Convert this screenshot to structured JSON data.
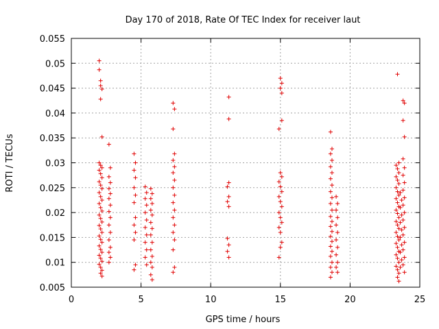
{
  "chart_data": {
    "type": "scatter",
    "title": "Day 170 of 2018, Rate Of TEC Index for receiver laut",
    "xlabel": "GPS time / hours",
    "ylabel": "ROTI / TECUs",
    "xlim": [
      0,
      25
    ],
    "ylim": [
      0.005,
      0.055
    ],
    "xticks": [
      "0",
      "5",
      "10",
      "15",
      "20",
      "25"
    ],
    "yticks": [
      "0.005",
      "0.01",
      "0.015",
      "0.02",
      "0.025",
      "0.03",
      "0.035",
      "0.04",
      "0.045",
      "0.05",
      "0.055"
    ],
    "grid": true,
    "marker": "+",
    "color": "#e00000",
    "series": [
      {
        "points": [
          [
            2.0,
            0.0505
          ],
          [
            2.0,
            0.0487
          ],
          [
            2.1,
            0.0465
          ],
          [
            2.1,
            0.0455
          ],
          [
            2.2,
            0.0448
          ],
          [
            2.1,
            0.0428
          ],
          [
            2.2,
            0.0352
          ],
          [
            2.0,
            0.03
          ],
          [
            2.1,
            0.0295
          ],
          [
            2.2,
            0.029
          ],
          [
            2.0,
            0.0285
          ],
          [
            2.1,
            0.0278
          ],
          [
            2.2,
            0.027
          ],
          [
            2.0,
            0.0262
          ],
          [
            2.1,
            0.0255
          ],
          [
            2.2,
            0.0248
          ],
          [
            2.0,
            0.024
          ],
          [
            2.1,
            0.0232
          ],
          [
            2.2,
            0.0225
          ],
          [
            2.0,
            0.0218
          ],
          [
            2.1,
            0.021
          ],
          [
            2.2,
            0.0203
          ],
          [
            2.0,
            0.0195
          ],
          [
            2.1,
            0.0188
          ],
          [
            2.2,
            0.0181
          ],
          [
            2.0,
            0.0174
          ],
          [
            2.1,
            0.0167
          ],
          [
            2.2,
            0.016
          ],
          [
            2.0,
            0.0153
          ],
          [
            2.1,
            0.0146
          ],
          [
            2.2,
            0.014
          ],
          [
            2.0,
            0.0133
          ],
          [
            2.1,
            0.0126
          ],
          [
            2.2,
            0.012
          ],
          [
            2.0,
            0.0114
          ],
          [
            2.1,
            0.0108
          ],
          [
            2.2,
            0.0102
          ],
          [
            2.0,
            0.0096
          ],
          [
            2.1,
            0.009
          ],
          [
            2.2,
            0.0084
          ],
          [
            2.1,
            0.0078
          ],
          [
            2.2,
            0.0072
          ],
          [
            2.7,
            0.0337
          ],
          [
            2.8,
            0.029
          ],
          [
            2.7,
            0.0272
          ],
          [
            2.8,
            0.026
          ],
          [
            2.7,
            0.0248
          ],
          [
            2.8,
            0.0238
          ],
          [
            2.7,
            0.0228
          ],
          [
            2.8,
            0.0215
          ],
          [
            2.7,
            0.0202
          ],
          [
            2.8,
            0.019
          ],
          [
            2.7,
            0.0175
          ],
          [
            2.8,
            0.016
          ],
          [
            2.7,
            0.0145
          ],
          [
            2.8,
            0.013
          ],
          [
            2.7,
            0.012
          ],
          [
            2.8,
            0.011
          ],
          [
            2.7,
            0.01
          ],
          [
            4.5,
            0.0318
          ],
          [
            4.6,
            0.03
          ],
          [
            4.5,
            0.0285
          ],
          [
            4.6,
            0.027
          ],
          [
            4.5,
            0.025
          ],
          [
            4.6,
            0.0235
          ],
          [
            4.5,
            0.022
          ],
          [
            4.6,
            0.019
          ],
          [
            4.5,
            0.0175
          ],
          [
            4.6,
            0.016
          ],
          [
            4.5,
            0.0145
          ],
          [
            4.6,
            0.0095
          ],
          [
            4.5,
            0.0085
          ],
          [
            5.3,
            0.0252
          ],
          [
            5.4,
            0.024
          ],
          [
            5.3,
            0.0228
          ],
          [
            5.4,
            0.0215
          ],
          [
            5.3,
            0.02
          ],
          [
            5.4,
            0.0185
          ],
          [
            5.3,
            0.017
          ],
          [
            5.4,
            0.0155
          ],
          [
            5.3,
            0.014
          ],
          [
            5.4,
            0.0125
          ],
          [
            5.3,
            0.011
          ],
          [
            5.4,
            0.0095
          ],
          [
            5.7,
            0.0248
          ],
          [
            5.8,
            0.0238
          ],
          [
            5.7,
            0.0228
          ],
          [
            5.8,
            0.0218
          ],
          [
            5.7,
            0.0205
          ],
          [
            5.8,
            0.0195
          ],
          [
            5.7,
            0.018
          ],
          [
            5.8,
            0.0168
          ],
          [
            5.7,
            0.0155
          ],
          [
            5.8,
            0.014
          ],
          [
            5.7,
            0.0125
          ],
          [
            5.8,
            0.0112
          ],
          [
            5.7,
            0.01
          ],
          [
            5.8,
            0.009
          ],
          [
            5.7,
            0.0075
          ],
          [
            5.8,
            0.0065
          ],
          [
            7.3,
            0.042
          ],
          [
            7.4,
            0.0408
          ],
          [
            7.3,
            0.0368
          ],
          [
            7.4,
            0.0318
          ],
          [
            7.3,
            0.0305
          ],
          [
            7.4,
            0.0292
          ],
          [
            7.3,
            0.028
          ],
          [
            7.4,
            0.0265
          ],
          [
            7.3,
            0.025
          ],
          [
            7.4,
            0.0235
          ],
          [
            7.3,
            0.022
          ],
          [
            7.4,
            0.0205
          ],
          [
            7.3,
            0.019
          ],
          [
            7.4,
            0.0175
          ],
          [
            7.3,
            0.016
          ],
          [
            7.4,
            0.0145
          ],
          [
            7.3,
            0.0125
          ],
          [
            7.4,
            0.009
          ],
          [
            7.3,
            0.008
          ],
          [
            11.3,
            0.0432
          ],
          [
            11.3,
            0.0388
          ],
          [
            11.3,
            0.026
          ],
          [
            11.2,
            0.0252
          ],
          [
            11.3,
            0.0232
          ],
          [
            11.2,
            0.0222
          ],
          [
            11.3,
            0.0212
          ],
          [
            11.2,
            0.0148
          ],
          [
            11.3,
            0.0135
          ],
          [
            11.2,
            0.0122
          ],
          [
            11.3,
            0.011
          ],
          [
            15.0,
            0.047
          ],
          [
            15.1,
            0.046
          ],
          [
            15.0,
            0.045
          ],
          [
            15.1,
            0.044
          ],
          [
            15.1,
            0.0385
          ],
          [
            14.9,
            0.0368
          ],
          [
            15.0,
            0.028
          ],
          [
            15.1,
            0.0272
          ],
          [
            14.9,
            0.0262
          ],
          [
            15.0,
            0.0252
          ],
          [
            15.1,
            0.0242
          ],
          [
            14.9,
            0.0232
          ],
          [
            15.0,
            0.0222
          ],
          [
            15.1,
            0.0212
          ],
          [
            14.9,
            0.02
          ],
          [
            15.0,
            0.019
          ],
          [
            15.1,
            0.018
          ],
          [
            14.9,
            0.017
          ],
          [
            15.0,
            0.016
          ],
          [
            15.1,
            0.014
          ],
          [
            15.0,
            0.013
          ],
          [
            14.9,
            0.011
          ],
          [
            18.6,
            0.0362
          ],
          [
            18.7,
            0.0328
          ],
          [
            18.6,
            0.0318
          ],
          [
            18.7,
            0.0305
          ],
          [
            18.6,
            0.0292
          ],
          [
            18.7,
            0.028
          ],
          [
            18.6,
            0.0268
          ],
          [
            18.7,
            0.0255
          ],
          [
            18.6,
            0.0242
          ],
          [
            18.7,
            0.023
          ],
          [
            18.6,
            0.0218
          ],
          [
            18.7,
            0.0205
          ],
          [
            18.6,
            0.0192
          ],
          [
            18.7,
            0.0182
          ],
          [
            18.6,
            0.0172
          ],
          [
            18.7,
            0.0162
          ],
          [
            18.6,
            0.0152
          ],
          [
            18.7,
            0.0142
          ],
          [
            18.6,
            0.0132
          ],
          [
            18.7,
            0.0122
          ],
          [
            18.6,
            0.0112
          ],
          [
            18.7,
            0.01
          ],
          [
            18.6,
            0.009
          ],
          [
            18.7,
            0.008
          ],
          [
            18.6,
            0.007
          ],
          [
            19.0,
            0.0232
          ],
          [
            19.1,
            0.0218
          ],
          [
            19.0,
            0.0205
          ],
          [
            19.1,
            0.019
          ],
          [
            19.0,
            0.0175
          ],
          [
            19.1,
            0.016
          ],
          [
            19.0,
            0.0145
          ],
          [
            19.1,
            0.013
          ],
          [
            19.0,
            0.0115
          ],
          [
            19.1,
            0.01
          ],
          [
            19.0,
            0.009
          ],
          [
            19.1,
            0.008
          ],
          [
            23.4,
            0.0478
          ],
          [
            23.5,
            0.03
          ],
          [
            23.3,
            0.0295
          ],
          [
            23.4,
            0.0288
          ],
          [
            23.5,
            0.028
          ],
          [
            23.3,
            0.0272
          ],
          [
            23.4,
            0.0265
          ],
          [
            23.5,
            0.0258
          ],
          [
            23.3,
            0.025
          ],
          [
            23.4,
            0.0242
          ],
          [
            23.5,
            0.0235
          ],
          [
            23.3,
            0.0228
          ],
          [
            23.4,
            0.022
          ],
          [
            23.5,
            0.0212
          ],
          [
            23.3,
            0.0205
          ],
          [
            23.4,
            0.0198
          ],
          [
            23.5,
            0.019
          ],
          [
            23.3,
            0.0182
          ],
          [
            23.4,
            0.0175
          ],
          [
            23.5,
            0.0168
          ],
          [
            23.3,
            0.016
          ],
          [
            23.4,
            0.0152
          ],
          [
            23.5,
            0.0145
          ],
          [
            23.3,
            0.0138
          ],
          [
            23.4,
            0.013
          ],
          [
            23.5,
            0.0122
          ],
          [
            23.3,
            0.0115
          ],
          [
            23.4,
            0.0108
          ],
          [
            23.5,
            0.01
          ],
          [
            23.3,
            0.0092
          ],
          [
            23.4,
            0.0085
          ],
          [
            23.5,
            0.0078
          ],
          [
            23.4,
            0.007
          ],
          [
            23.5,
            0.0062
          ],
          [
            23.6,
            0.024
          ],
          [
            23.7,
            0.0225
          ],
          [
            23.6,
            0.021
          ],
          [
            23.7,
            0.0195
          ],
          [
            23.6,
            0.018
          ],
          [
            23.7,
            0.0165
          ],
          [
            23.6,
            0.015
          ],
          [
            23.7,
            0.0135
          ],
          [
            23.6,
            0.012
          ],
          [
            23.7,
            0.0105
          ],
          [
            23.6,
            0.009
          ],
          [
            23.8,
            0.0425
          ],
          [
            23.9,
            0.042
          ],
          [
            23.8,
            0.0385
          ],
          [
            23.9,
            0.0352
          ],
          [
            23.8,
            0.0308
          ],
          [
            23.9,
            0.029
          ],
          [
            23.8,
            0.0275
          ],
          [
            23.9,
            0.026
          ],
          [
            23.8,
            0.0245
          ],
          [
            23.9,
            0.023
          ],
          [
            23.8,
            0.0215
          ],
          [
            23.9,
            0.02
          ],
          [
            23.8,
            0.0185
          ],
          [
            23.9,
            0.017
          ],
          [
            23.8,
            0.0155
          ],
          [
            23.9,
            0.014
          ],
          [
            23.8,
            0.0125
          ],
          [
            23.9,
            0.011
          ],
          [
            23.8,
            0.0095
          ],
          [
            23.9,
            0.008
          ]
        ]
      }
    ]
  }
}
